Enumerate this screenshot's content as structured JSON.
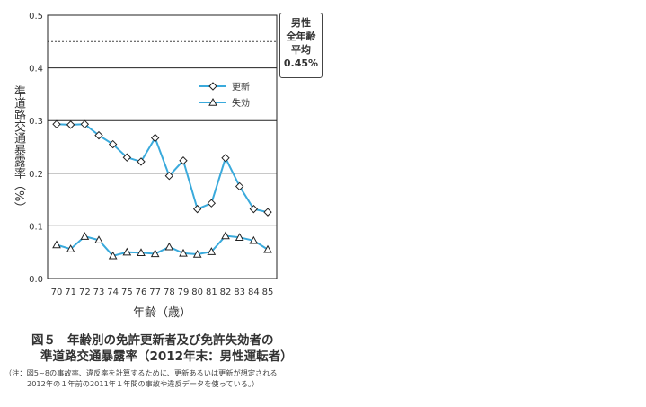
{
  "chart_data": {
    "type": "line",
    "categories": [
      "70",
      "71",
      "72",
      "73",
      "74",
      "75",
      "76",
      "77",
      "78",
      "79",
      "80",
      "81",
      "82",
      "83",
      "84",
      "85"
    ],
    "series": [
      {
        "name": "更新",
        "marker": "diamond",
        "color": "#3aaadc",
        "values": [
          0.293,
          0.292,
          0.293,
          0.272,
          0.255,
          0.23,
          0.222,
          0.267,
          0.195,
          0.224,
          0.132,
          0.143,
          0.229,
          0.175,
          0.132,
          0.126
        ]
      },
      {
        "name": "失効",
        "marker": "triangle",
        "color": "#3aaadc",
        "values": [
          0.064,
          0.056,
          0.08,
          0.073,
          0.043,
          0.05,
          0.049,
          0.047,
          0.06,
          0.048,
          0.046,
          0.051,
          0.081,
          0.078,
          0.072,
          0.055
        ]
      }
    ],
    "ylim": [
      0,
      0.5
    ],
    "yticks": [
      "0.0",
      "0.1",
      "0.2",
      "0.3",
      "0.4",
      "0.5"
    ],
    "grid": "horizontal",
    "xlabel": "年齢（歳）",
    "ylabel": "準道路交通暴露率（%）",
    "reference": {
      "value": 0.45,
      "style": "dashed",
      "label_lines": [
        "男性",
        "全年齢",
        "平均",
        "0.45%"
      ]
    },
    "legend_position": "right-top"
  },
  "caption": {
    "figure_no": "図５",
    "title_line1": "年齢別の免許更新者及び免許失効者の",
    "title_line2": "準道路交通暴露率（2012年末：男性運転者）"
  },
  "note": {
    "line1": "（注：図5~8の事故率、違反率を計算するために、更新あるいは更新が想定される",
    "line2": "2012年の１年前の2011年１年間の事故や違反データを使っている。）"
  }
}
